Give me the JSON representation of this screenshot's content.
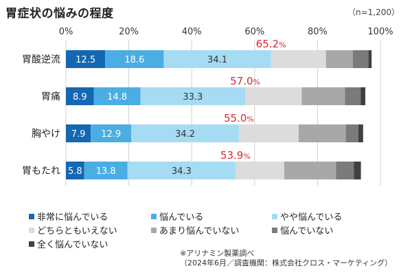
{
  "chart_data": {
    "type": "stacked-bar-horizontal",
    "title": "胃症状の悩みの程度",
    "sample_note": "（n=1,200）",
    "x_ticks": [
      "0%",
      "20%",
      "40%",
      "60%",
      "80%",
      "100%"
    ],
    "xlim": [
      0,
      100
    ],
    "categories": [
      "胃酸逆流",
      "胃痛",
      "胸やけ",
      "胃もたれ"
    ],
    "series": [
      {
        "name": "非常に悩んでいる",
        "color": "#1467b3",
        "text_color": "#ffffff",
        "values": [
          12.5,
          8.9,
          7.9,
          5.8
        ],
        "labels": [
          "12.5",
          "8.9",
          "7.9",
          "5.8"
        ]
      },
      {
        "name": "悩んでいる",
        "color": "#4aaee3",
        "text_color": "#ffffff",
        "values": [
          18.6,
          14.8,
          12.9,
          13.8
        ],
        "labels": [
          "18.6",
          "14.8",
          "12.9",
          "13.8"
        ]
      },
      {
        "name": "やや悩んでいる",
        "color": "#a6dbf4",
        "text_color": "#333333",
        "values": [
          34.1,
          33.3,
          34.2,
          34.3
        ],
        "labels": [
          "34.1",
          "33.3",
          "34.2",
          "34.3"
        ]
      },
      {
        "name": "どちらともいえない",
        "color": "#dcdcdc",
        "text_color": "#333333",
        "values": [
          17.5,
          18.0,
          19.0,
          15.5
        ],
        "labels": [
          "",
          "",
          "",
          ""
        ]
      },
      {
        "name": "あまり悩んでいない",
        "color": "#a8a8a8",
        "text_color": "#333333",
        "values": [
          8.5,
          13.7,
          15.0,
          16.5
        ],
        "labels": [
          "",
          "",
          "",
          ""
        ]
      },
      {
        "name": "悩んでいない",
        "color": "#7b7b7b",
        "text_color": "#ffffff",
        "values": [
          5.0,
          5.0,
          4.0,
          5.7
        ],
        "labels": [
          "",
          "",
          "",
          ""
        ]
      },
      {
        "name": "全く悩んでいない",
        "color": "#404040",
        "text_color": "#ffffff",
        "values": [
          1.0,
          1.5,
          1.5,
          2.2
        ],
        "labels": [
          "",
          "",
          "",
          ""
        ]
      }
    ],
    "totals": [
      {
        "value": 65.2,
        "number": "65.2",
        "unit": "%"
      },
      {
        "value": 57.0,
        "number": "57.0",
        "unit": "%"
      },
      {
        "value": 55.0,
        "number": "55.0",
        "unit": "%"
      },
      {
        "value": 53.9,
        "number": "53.9",
        "unit": "%"
      }
    ],
    "total_color": "#d9282f",
    "source_lines": [
      "※アリナミン製薬調べ",
      "（2024年6月／調査機関：株式会社クロス・マーケティング）"
    ]
  }
}
